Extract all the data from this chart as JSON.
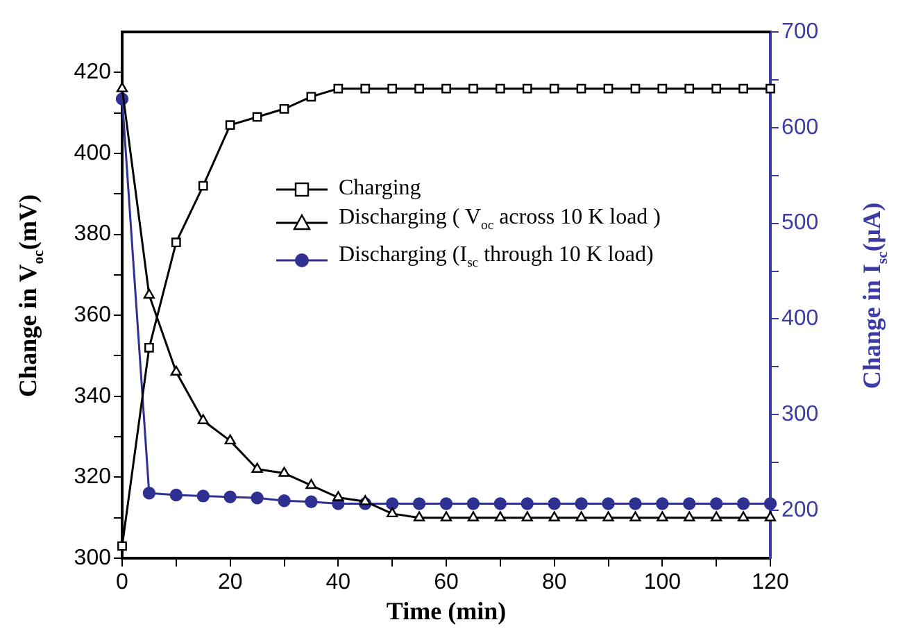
{
  "chart_data": {
    "type": "line",
    "xlabel": "Time (min)",
    "ylabel": "Change in V$_{oc}$(mV)",
    "y2label": "Change in I$_{sc}$(μA)",
    "x": [
      0,
      5,
      10,
      15,
      20,
      25,
      30,
      35,
      40,
      45,
      50,
      55,
      60,
      65,
      70,
      75,
      80,
      85,
      90,
      95,
      100,
      105,
      110,
      115,
      120
    ],
    "series": [
      {
        "name": "Charging",
        "color": "#000000",
        "marker": "square",
        "values": [
          303,
          352,
          378,
          392,
          407,
          409,
          411,
          414,
          416,
          416,
          416,
          416,
          416,
          416,
          416,
          416,
          416,
          416,
          416,
          416,
          416,
          416,
          416,
          416,
          416
        ]
      },
      {
        "name": "Discharging ( V$_{oc}$ across 10 K load )",
        "color": "#000000",
        "marker": "triangle",
        "values": [
          416,
          365,
          346,
          334,
          329,
          322,
          321,
          318,
          315,
          314,
          311,
          310,
          310,
          310,
          310,
          310,
          310,
          310,
          310,
          310,
          310,
          310,
          310,
          310,
          310
        ]
      },
      {
        "name": "Discharging (I$_{sc}$ through 10 K load)",
        "color": "#2e3192",
        "marker": "circle",
        "axis": "y2",
        "values": [
          630,
          218,
          216,
          215,
          214,
          213,
          210,
          209,
          207,
          207,
          207,
          207,
          207,
          207,
          207,
          207,
          207,
          207,
          207,
          207,
          207,
          207,
          207,
          207,
          207
        ]
      }
    ],
    "xlim": [
      0,
      120
    ],
    "xticks": [
      0,
      {
        "value": 10,
        "label": null
      },
      20,
      {
        "value": 30,
        "label": null
      },
      40,
      {
        "value": 50,
        "label": null
      },
      60,
      {
        "value": 70,
        "label": null
      },
      80,
      {
        "value": 90,
        "label": null
      },
      100,
      {
        "value": 110,
        "label": null
      },
      120
    ],
    "ylim": [
      300,
      430
    ],
    "yticks": [
      300,
      {
        "value": 310,
        "label": null
      },
      320,
      {
        "value": 330,
        "label": null
      },
      340,
      {
        "value": 350,
        "label": null
      },
      360,
      {
        "value": 370,
        "label": null
      },
      380,
      {
        "value": 390,
        "label": null
      },
      400,
      {
        "value": 410,
        "label": null
      },
      420
    ],
    "y2lim": [
      150,
      700
    ],
    "y2ticks": [
      200,
      {
        "value": 250,
        "label": null
      },
      300,
      {
        "value": 350,
        "label": null
      },
      400,
      {
        "value": 450,
        "label": null
      },
      500,
      {
        "value": 550,
        "label": null
      },
      600,
      {
        "value": 650,
        "label": null
      },
      700
    ],
    "grid": false,
    "legend": "top right",
    "line_style": "solid"
  }
}
